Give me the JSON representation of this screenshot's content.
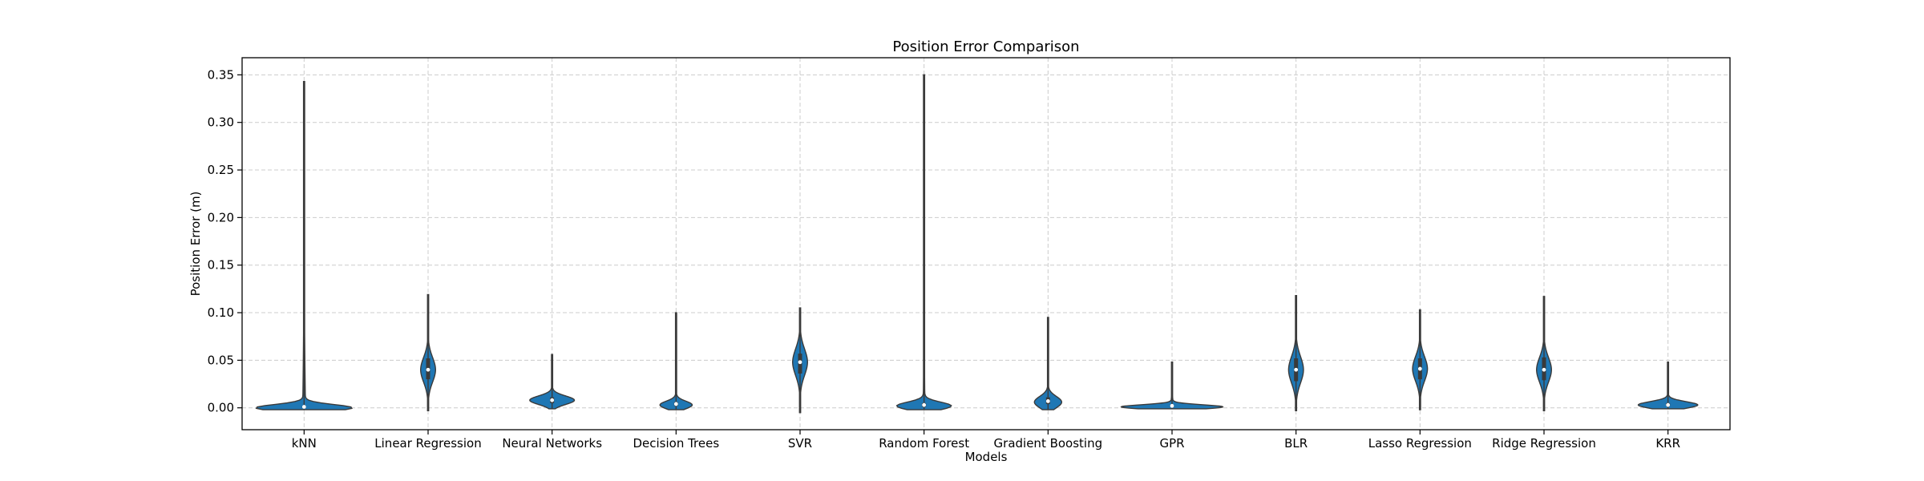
{
  "chart_data": {
    "type": "violin",
    "title": "Position Error Comparison",
    "xlabel": "Models",
    "ylabel": "Position Error (m)",
    "ylim": [
      -0.023,
      0.368
    ],
    "yticks": [
      "0.00",
      "0.05",
      "0.10",
      "0.15",
      "0.20",
      "0.25",
      "0.30",
      "0.35"
    ],
    "grid": true,
    "color": "#1f77b4",
    "categories": [
      "kNN",
      "Linear Regression",
      "Neural Networks",
      "Decision Trees",
      "SVR",
      "Random Forest",
      "Gradient Boosting",
      "GPR",
      "BLR",
      "Lasso Regression",
      "Ridge Regression",
      "KRR"
    ],
    "distributions": [
      {
        "min": -0.002,
        "max": 0.343,
        "median": 0.001,
        "q1": 0.0,
        "q3": 0.002,
        "mode": 0.0,
        "peak_width": 0.77,
        "spread": 0.0035
      },
      {
        "min": -0.003,
        "max": 0.119,
        "median": 0.04,
        "q1": 0.03,
        "q3": 0.052,
        "mode": 0.04,
        "peak_width": 0.12,
        "spread": 0.013
      },
      {
        "min": -0.001,
        "max": 0.056,
        "median": 0.008,
        "q1": 0.005,
        "q3": 0.011,
        "mode": 0.008,
        "peak_width": 0.36,
        "spread": 0.0045
      },
      {
        "min": -0.002,
        "max": 0.1,
        "median": 0.004,
        "q1": 0.002,
        "q3": 0.006,
        "mode": 0.003,
        "peak_width": 0.26,
        "spread": 0.004
      },
      {
        "min": -0.005,
        "max": 0.105,
        "median": 0.048,
        "q1": 0.036,
        "q3": 0.057,
        "mode": 0.048,
        "peak_width": 0.12,
        "spread": 0.014
      },
      {
        "min": -0.002,
        "max": 0.35,
        "median": 0.003,
        "q1": 0.001,
        "q3": 0.005,
        "mode": 0.002,
        "peak_width": 0.44,
        "spread": 0.004
      },
      {
        "min": -0.002,
        "max": 0.095,
        "median": 0.007,
        "q1": 0.004,
        "q3": 0.011,
        "mode": 0.006,
        "peak_width": 0.22,
        "spread": 0.006
      },
      {
        "min": -0.001,
        "max": 0.048,
        "median": 0.002,
        "q1": 0.001,
        "q3": 0.003,
        "mode": 0.001,
        "peak_width": 0.82,
        "spread": 0.0022
      },
      {
        "min": -0.003,
        "max": 0.118,
        "median": 0.04,
        "q1": 0.028,
        "q3": 0.052,
        "mode": 0.04,
        "peak_width": 0.12,
        "spread": 0.014
      },
      {
        "min": -0.002,
        "max": 0.103,
        "median": 0.041,
        "q1": 0.03,
        "q3": 0.052,
        "mode": 0.041,
        "peak_width": 0.12,
        "spread": 0.013
      },
      {
        "min": -0.003,
        "max": 0.117,
        "median": 0.04,
        "q1": 0.029,
        "q3": 0.053,
        "mode": 0.04,
        "peak_width": 0.12,
        "spread": 0.013
      },
      {
        "min": -0.001,
        "max": 0.048,
        "median": 0.003,
        "q1": 0.002,
        "q3": 0.005,
        "mode": 0.003,
        "peak_width": 0.48,
        "spread": 0.0035
      }
    ]
  }
}
